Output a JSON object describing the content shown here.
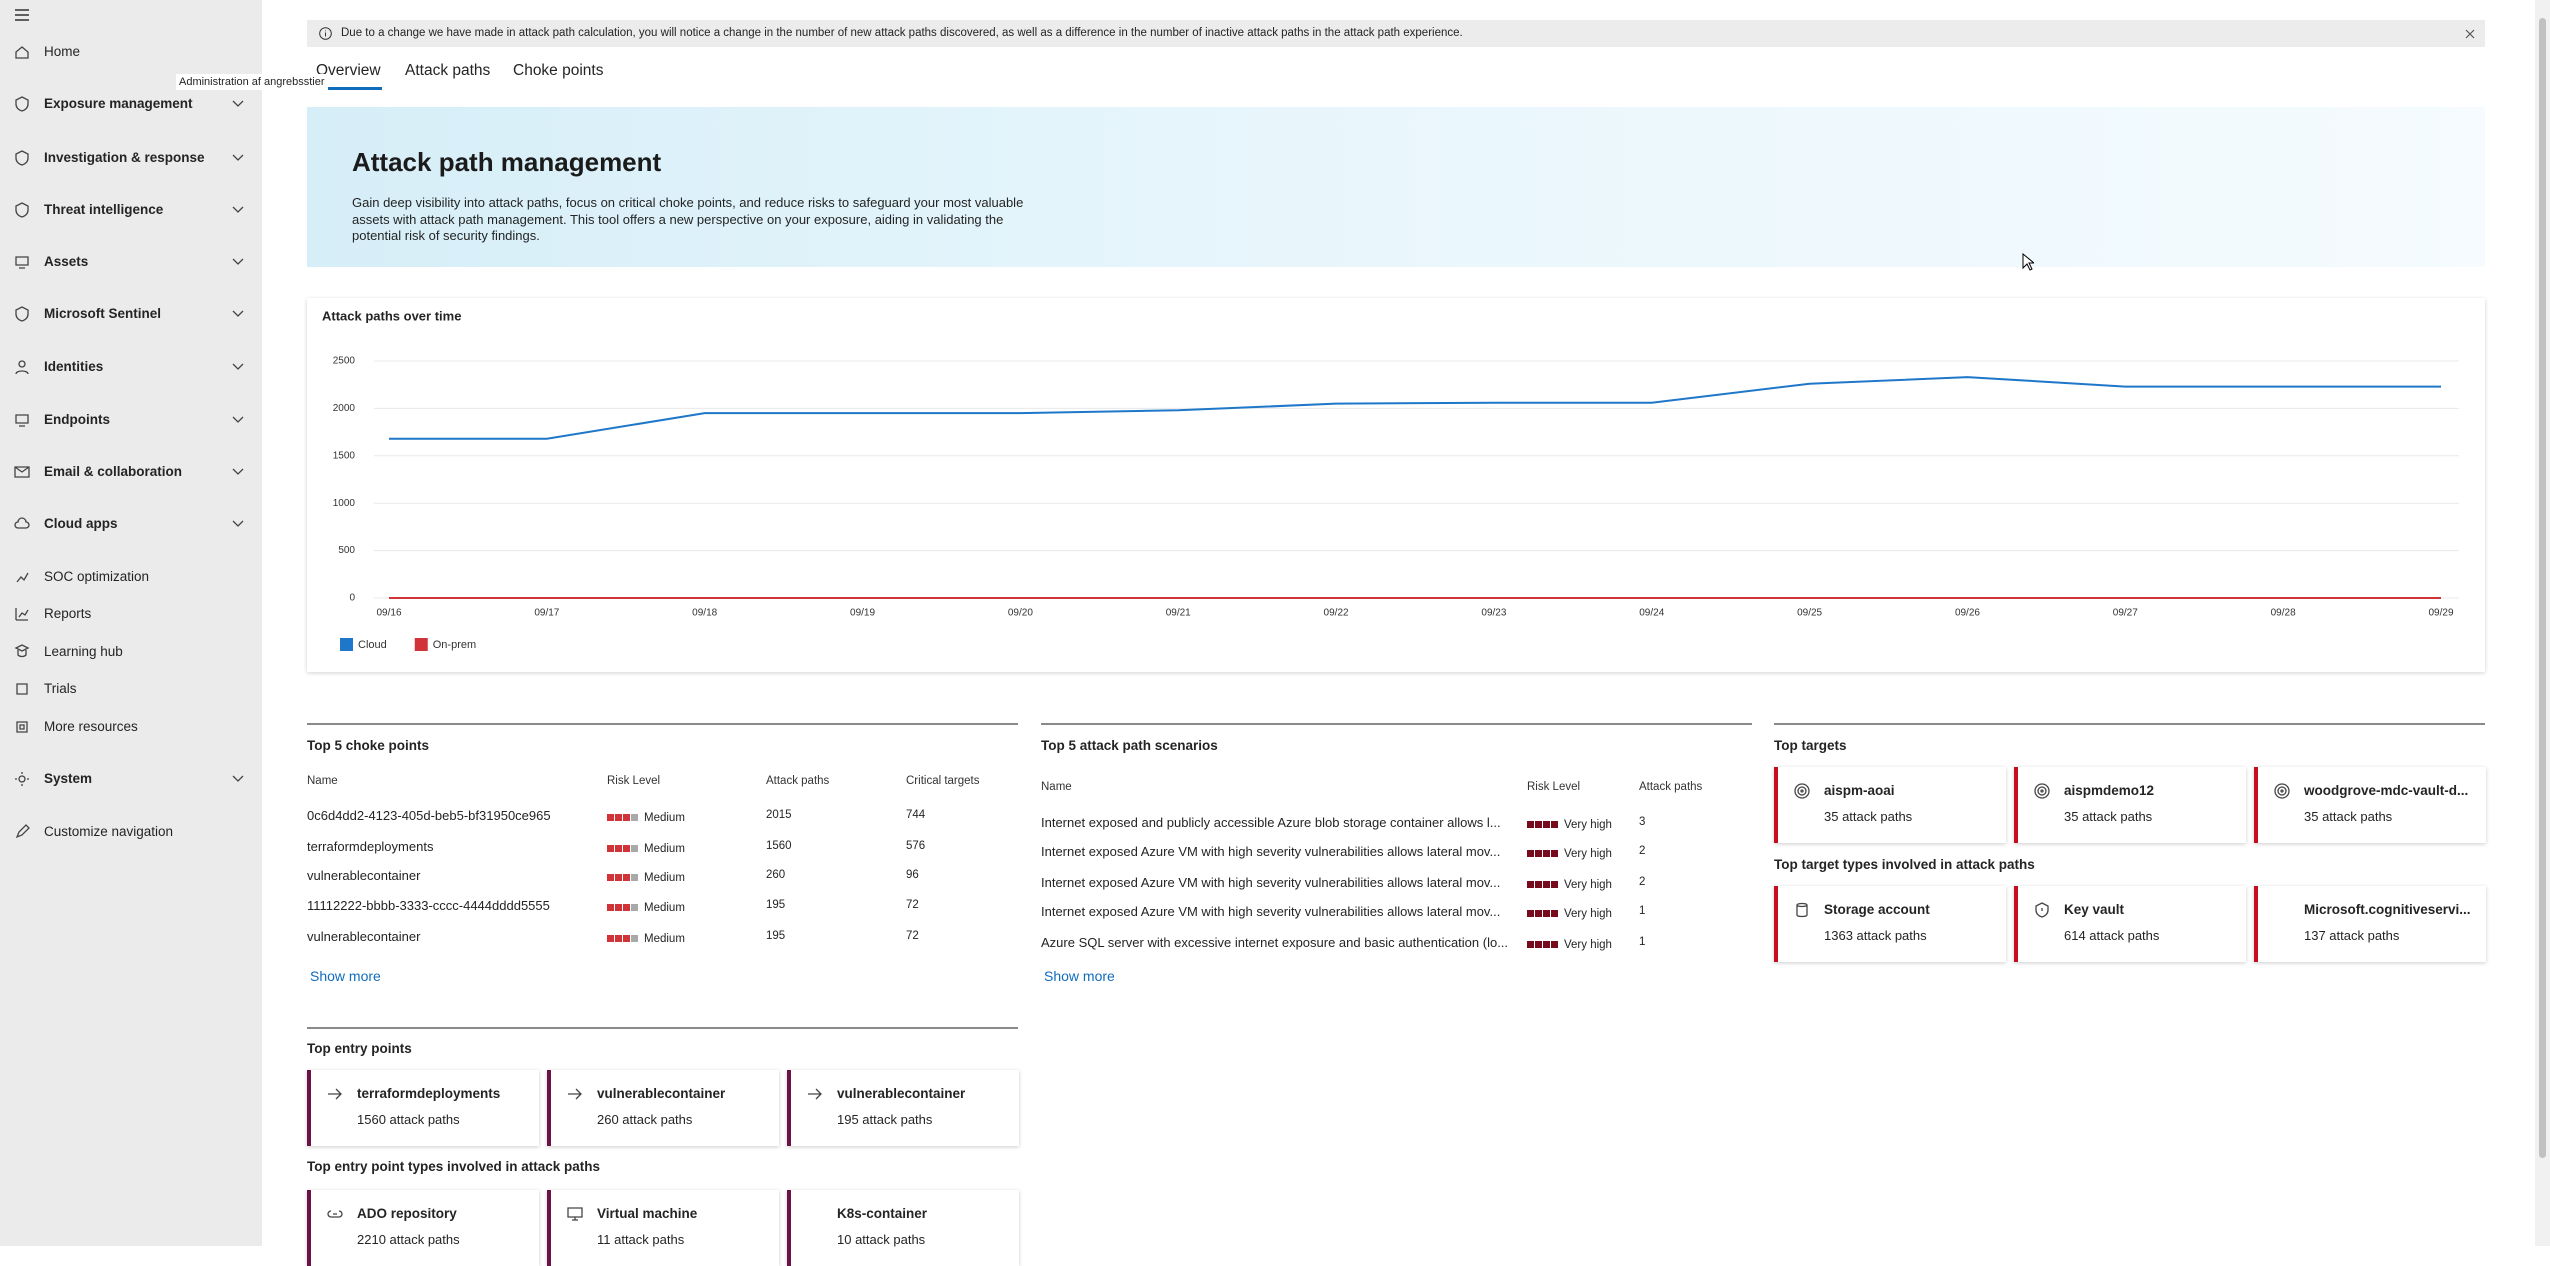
{
  "nav": {
    "tooltip": "Administration af angrebsstier",
    "items": [
      "Home",
      "Exposure management",
      "Investigation & response",
      "Threat intelligence",
      "Assets",
      "Microsoft Sentinel",
      "Identities",
      "Endpoints",
      "Email & collaboration",
      "Cloud apps",
      "SOC optimization",
      "Reports",
      "Learning hub",
      "Trials",
      "More resources",
      "System",
      "Customize navigation"
    ]
  },
  "banner": "Due to a change we have made in attack path calculation, you will notice a change in the number of new attack paths discovered, as well as a difference in the number of inactive attack paths in the attack path experience.",
  "tabs": [
    "Overview",
    "Attack paths",
    "Choke points"
  ],
  "hero": {
    "title": "Attack path management",
    "description": "Gain deep visibility into attack paths, focus on critical choke points, and reduce risks to safeguard your most valuable assets with attack path management. This tool offers a new perspective on your exposure, aiding in validating the potential risk of security findings."
  },
  "chart_data": {
    "type": "line",
    "title": "Attack paths over time",
    "x": [
      "09/16",
      "09/17",
      "09/18",
      "09/19",
      "09/20",
      "09/21",
      "09/22",
      "09/23",
      "09/24",
      "09/25",
      "09/26",
      "09/27",
      "09/28",
      "09/29"
    ],
    "series": [
      {
        "name": "Cloud",
        "color": "#1f77c9",
        "values": [
          1680,
          1680,
          1950,
          1950,
          1950,
          1980,
          2050,
          2060,
          2060,
          2260,
          2330,
          2230,
          2230,
          2230
        ]
      },
      {
        "name": "On-prem",
        "color": "#d13438",
        "values": [
          0,
          0,
          0,
          0,
          0,
          0,
          0,
          0,
          0,
          0,
          0,
          0,
          0,
          0
        ]
      }
    ],
    "ylim": [
      0,
      2500
    ],
    "yticks": [
      0,
      500,
      1000,
      1500,
      2000,
      2500
    ],
    "grid": true,
    "legend": "bottom-left"
  },
  "choke_points": {
    "title": "Top 5 choke points",
    "columns": [
      "Name",
      "Risk Level",
      "Attack paths",
      "Critical targets"
    ],
    "rows": [
      [
        "0c6d4dd2-4123-405d-beb5-bf31950ce965",
        "Medium",
        2015,
        744
      ],
      [
        "terraformdeployments",
        "Medium",
        1560,
        576
      ],
      [
        "vulnerablecontainer",
        "Medium",
        260,
        96
      ],
      [
        "11112222-bbbb-3333-cccc-4444dddd5555",
        "Medium",
        195,
        72
      ],
      [
        "vulnerablecontainer",
        "Medium",
        195,
        72
      ]
    ],
    "show_more": "Show more"
  },
  "scenarios": {
    "title": "Top 5 attack path scenarios",
    "columns": [
      "Name",
      "Risk Level",
      "Attack paths"
    ],
    "rows": [
      [
        "Internet exposed and publicly accessible Azure blob storage container allows l...",
        "Very high",
        3
      ],
      [
        "Internet exposed Azure VM with high severity vulnerabilities allows lateral mov...",
        "Very high",
        2
      ],
      [
        "Internet exposed Azure VM with high severity vulnerabilities allows lateral mov...",
        "Very high",
        2
      ],
      [
        "Internet exposed Azure VM with high severity vulnerabilities allows lateral mov...",
        "Very high",
        1
      ],
      [
        "Azure SQL server with excessive internet exposure and basic authentication (lo...",
        "Very high",
        1
      ]
    ],
    "show_more": "Show more"
  },
  "targets": {
    "title": "Top targets",
    "cards": [
      [
        "aispm-aoai",
        "35 attack paths"
      ],
      [
        "aispmdemo12",
        "35 attack paths"
      ],
      [
        "woodgrove-mdc-vault-d...",
        "35 attack paths"
      ]
    ]
  },
  "target_types": {
    "title": "Top target types involved in attack paths",
    "cards": [
      [
        "Storage account",
        "1363 attack paths"
      ],
      [
        "Key vault",
        "614 attack paths"
      ],
      [
        "Microsoft.cognitiveservi...",
        "137 attack paths"
      ]
    ]
  },
  "entry_points": {
    "title": "Top entry points",
    "cards": [
      [
        "terraformdeployments",
        "1560 attack paths"
      ],
      [
        "vulnerablecontainer",
        "260 attack paths"
      ],
      [
        "vulnerablecontainer",
        "195 attack paths"
      ]
    ]
  },
  "entry_point_types": {
    "title": "Top entry point types involved in attack paths",
    "cards": [
      [
        "ADO repository",
        "2210 attack paths"
      ],
      [
        "Virtual machine",
        "11 attack paths"
      ],
      [
        "K8s-container",
        "10 attack paths"
      ]
    ]
  }
}
